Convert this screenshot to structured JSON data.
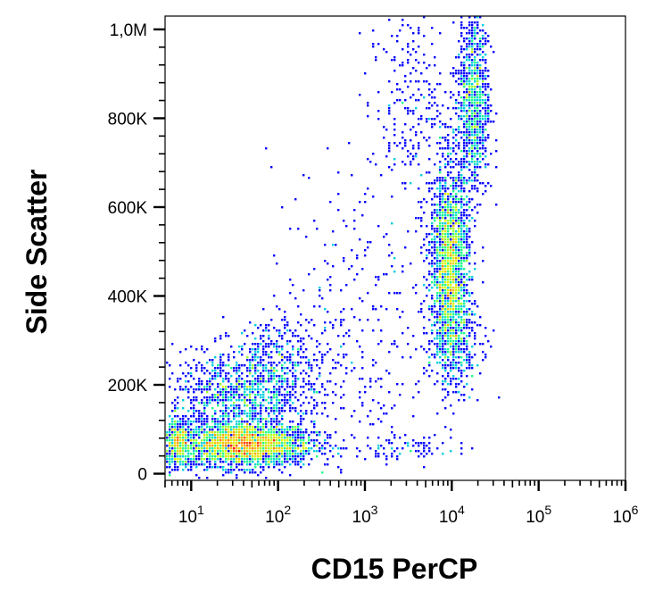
{
  "chart_data": {
    "type": "scatter",
    "title": "",
    "xlabel": "CD15 PerCP",
    "ylabel": "Side Scatter",
    "x_scale": "log",
    "xlim": [
      5,
      1000000
    ],
    "ylim": [
      -15000,
      1030000
    ],
    "grid": false,
    "legend": "none",
    "x_tick_labels": [
      {
        "value": 10,
        "base": "10",
        "exp": "1"
      },
      {
        "value": 100,
        "base": "10",
        "exp": "2"
      },
      {
        "value": 1000,
        "base": "10",
        "exp": "3"
      },
      {
        "value": 10000,
        "base": "10",
        "exp": "4"
      },
      {
        "value": 100000,
        "base": "10",
        "exp": "5"
      },
      {
        "value": 1000000,
        "base": "10",
        "exp": "6"
      }
    ],
    "y_ticks": [
      {
        "value": 0,
        "label": "0"
      },
      {
        "value": 200000,
        "label": "200K"
      },
      {
        "value": 400000,
        "label": "400K"
      },
      {
        "value": 600000,
        "label": "600K"
      },
      {
        "value": 800000,
        "label": "800K"
      },
      {
        "value": 1000000,
        "label": "1,0M"
      }
    ],
    "density_colormap": [
      "#0000ff",
      "#00b4ff",
      "#00ffa0",
      "#d8ff00",
      "#ffb000",
      "#ff0000"
    ],
    "populations": [
      {
        "center_x": 40,
        "center_y": 65000,
        "spread_log_x": 0.4,
        "spread_y": 25000,
        "count": 2600
      },
      {
        "center_x": 35,
        "center_y": 170000,
        "spread_log_x": 0.38,
        "spread_y": 55000,
        "count": 1000
      },
      {
        "center_x": 120,
        "center_y": 250000,
        "spread_log_x": 0.3,
        "spread_y": 50000,
        "count": 350
      },
      {
        "center_x": 9500,
        "center_y": 470000,
        "spread_log_x": 0.11,
        "spread_y": 110000,
        "count": 2000
      },
      {
        "center_x": 11000,
        "center_y": 300000,
        "spread_log_x": 0.16,
        "spread_y": 60000,
        "count": 300
      },
      {
        "center_x": 18000,
        "center_y": 840000,
        "spread_log_x": 0.09,
        "spread_y": 110000,
        "count": 900
      },
      {
        "center_x": 3500,
        "center_y": 820000,
        "spread_log_x": 0.25,
        "spread_y": 110000,
        "count": 250
      },
      {
        "center_x": 800,
        "center_y": 350000,
        "spread_log_x": 0.5,
        "spread_y": 180000,
        "count": 300
      },
      {
        "center_x": 3000,
        "center_y": 60000,
        "spread_log_x": 0.3,
        "spread_y": 15000,
        "count": 80
      },
      {
        "center_x": 7,
        "center_y": 65000,
        "spread_log_x": 0.07,
        "spread_y": 30000,
        "count": 350
      }
    ]
  }
}
